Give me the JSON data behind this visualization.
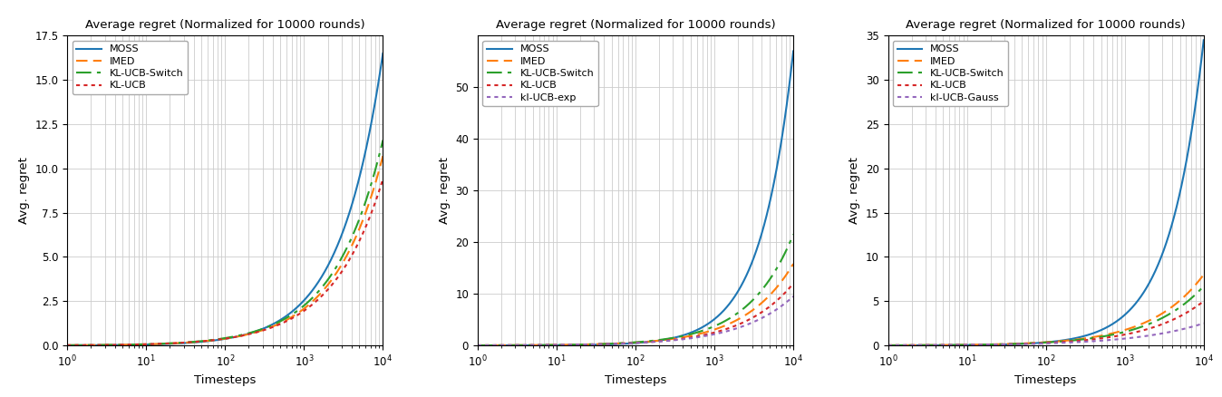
{
  "title": "Average regret (Normalized for 10000 rounds)",
  "xlabel": "Timesteps",
  "ylabel": "Avg. regret",
  "x_min": 1,
  "x_max": 10000,
  "num_points": 1000,
  "plot_configs": [
    {
      "ylim": [
        0,
        17.5
      ],
      "yticks": [
        0.0,
        2.5,
        5.0,
        7.5,
        10.0,
        12.5,
        15.0,
        17.5
      ],
      "series": [
        {
          "label": "MOSS",
          "color": "#1f77b4",
          "linestyle": "solid",
          "endpoint": 16.5,
          "alpha": 0.75,
          "beta": 0.5
        },
        {
          "label": "IMED",
          "color": "#ff7f0e",
          "linestyle": "dashed",
          "endpoint": 10.7,
          "alpha": 0.65,
          "beta": 0.5
        },
        {
          "label": "KL-UCB-Switch",
          "color": "#2ca02c",
          "linestyle": "dashdot",
          "endpoint": 11.6,
          "alpha": 0.65,
          "beta": 0.5
        },
        {
          "label": "KL-UCB",
          "color": "#d62728",
          "linestyle": "dotted",
          "endpoint": 9.4,
          "alpha": 0.62,
          "beta": 0.5
        }
      ]
    },
    {
      "ylim": [
        0,
        60
      ],
      "yticks": [
        0,
        10,
        20,
        30,
        40,
        50
      ],
      "series": [
        {
          "label": "MOSS",
          "color": "#1f77b4",
          "linestyle": "solid",
          "endpoint": 57.0,
          "alpha": 1.05,
          "beta": 0.0
        },
        {
          "label": "IMED",
          "color": "#ff7f0e",
          "linestyle": "dashed",
          "endpoint": 15.8,
          "alpha": 0.65,
          "beta": 0.5
        },
        {
          "label": "KL-UCB-Switch",
          "color": "#2ca02c",
          "linestyle": "dashdot",
          "endpoint": 21.5,
          "alpha": 0.7,
          "beta": 0.5
        },
        {
          "label": "KL-UCB",
          "color": "#d62728",
          "linestyle": "dotted",
          "endpoint": 12.0,
          "alpha": 0.62,
          "beta": 0.5
        },
        {
          "label": "kl-UCB-exp",
          "color": "#9467bd",
          "linestyle": "dotted",
          "endpoint": 9.5,
          "alpha": 0.58,
          "beta": 0.5
        }
      ]
    },
    {
      "ylim": [
        0,
        35
      ],
      "yticks": [
        0,
        5,
        10,
        15,
        20,
        25,
        30,
        35
      ],
      "series": [
        {
          "label": "MOSS",
          "color": "#1f77b4",
          "linestyle": "solid",
          "endpoint": 34.5,
          "alpha": 1.0,
          "beta": 0.0
        },
        {
          "label": "IMED",
          "color": "#ff7f0e",
          "linestyle": "dashed",
          "endpoint": 8.0,
          "alpha": 0.6,
          "beta": 0.5
        },
        {
          "label": "KL-UCB-Switch",
          "color": "#2ca02c",
          "linestyle": "dashdot",
          "endpoint": 6.7,
          "alpha": 0.58,
          "beta": 0.5
        },
        {
          "label": "KL-UCB",
          "color": "#d62728",
          "linestyle": "dotted",
          "endpoint": 5.0,
          "alpha": 0.55,
          "beta": 0.5
        },
        {
          "label": "kl-UCB-Gauss",
          "color": "#9467bd",
          "linestyle": "dotted",
          "endpoint": 2.5,
          "alpha": 0.45,
          "beta": 0.5
        }
      ]
    }
  ]
}
